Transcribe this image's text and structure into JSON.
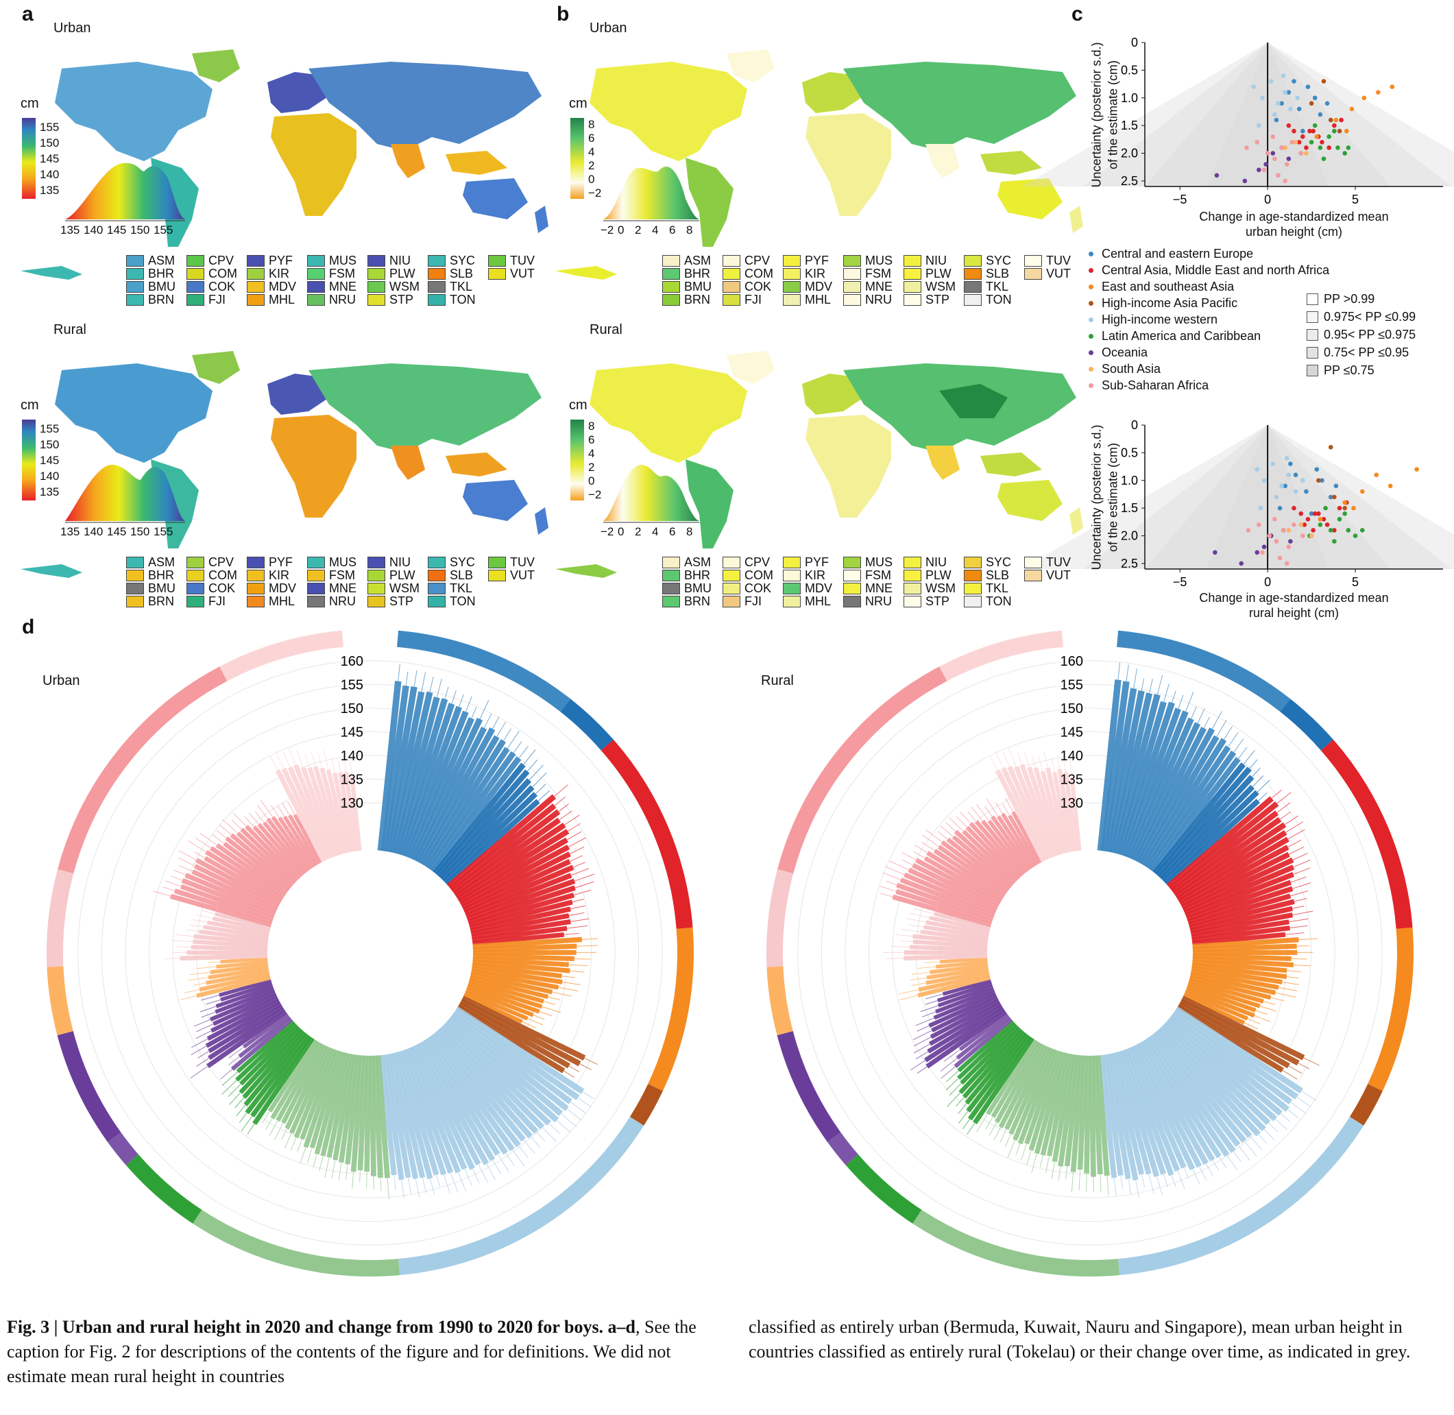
{
  "panel_labels": {
    "a": "a",
    "b": "b",
    "c": "c",
    "d": "d"
  },
  "map_titles": {
    "urban": "Urban",
    "rural": "Rural"
  },
  "map_unit": "cm",
  "panel_a": {
    "colorbar_ticks": [
      "155",
      "150",
      "145",
      "140",
      "135"
    ],
    "density_ticks": [
      "135",
      "140",
      "145",
      "150",
      "155"
    ]
  },
  "panel_b": {
    "colorbar_ticks": [
      "8",
      "6",
      "4",
      "2",
      "0",
      "−2"
    ],
    "density_ticks": [
      "−2",
      "0",
      "2",
      "4",
      "6",
      "8"
    ]
  },
  "small_country_codes": [
    "ASM",
    "BHR",
    "BMU",
    "BRN",
    "CPV",
    "COM",
    "COK",
    "FJI",
    "PYF",
    "KIR",
    "MDV",
    "MHL",
    "MUS",
    "FSM",
    "MNE",
    "NRU",
    "NIU",
    "PLW",
    "WSM",
    "STP",
    "SYC",
    "SLB",
    "TKL",
    "TON",
    "TUV",
    "VUT"
  ],
  "small_colors": {
    "a_urban": [
      "#4aa0c8",
      "#3cb8b0",
      "#4aa0c8",
      "#3cb8b0",
      "#5cc64a",
      "#d8d820",
      "#4a78c8",
      "#2eb07a",
      "#4a50b0",
      "#9ed040",
      "#f0c020",
      "#f0a010",
      "#3cb8b0",
      "#56d070",
      "#4a50b0",
      "#66c060",
      "#4a50b0",
      "#a8d836",
      "#6cc850",
      "#e0e02c",
      "#3cb8b0",
      "#f08010",
      "#777777",
      "#34b2aa",
      "#6cc840",
      "#e8e020"
    ],
    "a_rural": [
      "#3cb8b0",
      "#f0c020",
      "#777777",
      "#f0c020",
      "#9ed040",
      "#e8d020",
      "#4a78c8",
      "#2eb07a",
      "#4a50b0",
      "#f0c020",
      "#f0a010",
      "#f08a20",
      "#3cb8b0",
      "#f0c020",
      "#4a50b0",
      "#777777",
      "#4a50b0",
      "#a8d836",
      "#c8e030",
      "#e8c420",
      "#3cb8b0",
      "#f07010",
      "#4a90c8",
      "#34b2aa",
      "#6cc840",
      "#e8e020"
    ],
    "b_urban": [
      "#f8f0c8",
      "#5cc870",
      "#a8d836",
      "#8acc38",
      "#fdf8d8",
      "#f0f040",
      "#f0c880",
      "#d8e040",
      "#f4f040",
      "#f4f060",
      "#88cc48",
      "#f0f0b0",
      "#a0d440",
      "#fdf8e0",
      "#f0f0b0",
      "#fdf8e0",
      "#f4f040",
      "#f8f040",
      "#f0f0a0",
      "#fdfde8",
      "#d8e840",
      "#f08a10",
      "#777777",
      "#f0f0f0",
      "#fdfde8",
      "#f4d8a0"
    ],
    "b_rural": [
      "#f8f0c8",
      "#5cc870",
      "#777777",
      "#5cc870",
      "#fdf8d8",
      "#f4f040",
      "#f0f080",
      "#f0c880",
      "#f4f040",
      "#fdf8d8",
      "#5cc870",
      "#f0f0a0",
      "#a0d440",
      "#fdfde8",
      "#f4f040",
      "#777777",
      "#f4f040",
      "#f8f040",
      "#f0f0a0",
      "#fdfde8",
      "#f0d040",
      "#f08a10",
      "#f4f040",
      "#f0f0f0",
      "#fdfde8",
      "#f4d8a0"
    ]
  },
  "panel_c": {
    "urban_xlabel": [
      "Change in age-standardized mean",
      "urban height (cm)"
    ],
    "rural_xlabel": [
      "Change in age-standardized mean",
      "rural height (cm)"
    ],
    "ylabel": [
      "Uncertainty (posterior s.d.)",
      "of the estimate (cm)"
    ],
    "x_ticks": [
      "−5",
      "0",
      "5"
    ],
    "y_ticks": [
      "0",
      "0.5",
      "1.0",
      "1.5",
      "2.0",
      "2.5"
    ]
  },
  "region_legend": [
    {
      "label": "Central and eastern Europe",
      "color": "#3f89c2"
    },
    {
      "label": "Central Asia, Middle East and north Africa",
      "color": "#e1232a"
    },
    {
      "label": "East and southeast Asia",
      "color": "#f58a1f"
    },
    {
      "label": "High-income Asia Pacific",
      "color": "#b1531d"
    },
    {
      "label": "High-income western",
      "color": "#a6cde6"
    },
    {
      "label": "Latin America and Caribbean",
      "color": "#2ea136"
    },
    {
      "label": "Oceania",
      "color": "#6a3d9a"
    },
    {
      "label": "South Asia",
      "color": "#fdb262"
    },
    {
      "label": "Sub-Saharan Africa",
      "color": "#f59a9e"
    }
  ],
  "pp_legend": [
    "PP >0.99",
    "0.975< PP  ≤0.99",
    "0.95< PP  ≤0.975",
    "0.75< PP  ≤0.95",
    "PP  ≤0.75"
  ],
  "panel_d": {
    "urban_title": "Urban",
    "rural_title": "Rural",
    "radial_ticks": [
      "160",
      "155",
      "150",
      "145",
      "140",
      "135",
      "130"
    ]
  },
  "chart_data": [
    {
      "type": "scatter",
      "title": "",
      "xlabel": "Change in age-standardized mean urban height (cm)",
      "ylabel": "Uncertainty (posterior s.d.) of the estimate (cm)",
      "xlim": [
        -7,
        10
      ],
      "ylim": [
        2.6,
        0
      ],
      "series": [
        {
          "name": "Central and eastern Europe",
          "x": [
            0.8,
            1.2,
            1.8,
            2.3,
            2.7,
            3.0,
            1.5,
            0.5,
            2.0,
            3.4
          ],
          "y": [
            1.1,
            0.9,
            1.2,
            0.8,
            1.0,
            1.3,
            0.7,
            1.4,
            1.6,
            1.1
          ]
        },
        {
          "name": "Central Asia, Middle East and north Africa",
          "x": [
            1.2,
            2.0,
            2.6,
            3.1,
            3.8,
            2.2,
            1.5,
            4.2,
            2.9,
            3.5,
            1.8,
            2.4
          ],
          "y": [
            1.5,
            1.7,
            1.6,
            1.8,
            1.5,
            1.9,
            1.6,
            1.4,
            1.7,
            1.9,
            1.8,
            1.6
          ]
        },
        {
          "name": "East and southeast Asia",
          "x": [
            5.5,
            6.3,
            7.1,
            4.8,
            3.9,
            4.5,
            2.8
          ],
          "y": [
            1.0,
            0.9,
            0.8,
            1.2,
            1.4,
            1.6,
            1.7
          ]
        },
        {
          "name": "High-income Asia Pacific",
          "x": [
            3.2,
            2.5,
            4.1,
            3.6
          ],
          "y": [
            0.7,
            1.1,
            1.6,
            1.4
          ]
        },
        {
          "name": "High-income western",
          "x": [
            -0.8,
            -0.3,
            0.2,
            0.6,
            1.0,
            1.3,
            0.4,
            -0.5,
            0.9,
            1.7
          ],
          "y": [
            0.8,
            1.0,
            0.7,
            1.1,
            0.9,
            1.2,
            1.3,
            1.5,
            0.6,
            1.0
          ]
        },
        {
          "name": "Latin America and Caribbean",
          "x": [
            2.5,
            3.0,
            3.5,
            4.0,
            4.4,
            1.9,
            2.7,
            3.8,
            4.6,
            3.2
          ],
          "y": [
            1.8,
            1.9,
            1.7,
            1.9,
            2.0,
            2.0,
            1.5,
            1.6,
            1.9,
            2.1
          ]
        },
        {
          "name": "Oceania",
          "x": [
            -2.9,
            -1.3,
            -0.5,
            0.3,
            0.8,
            1.2,
            -0.1
          ],
          "y": [
            2.4,
            2.5,
            2.3,
            2.0,
            1.9,
            2.1,
            2.2
          ]
        },
        {
          "name": "South Asia",
          "x": [
            1.0,
            1.6,
            2.2
          ],
          "y": [
            1.9,
            1.8,
            2.0
          ]
        },
        {
          "name": "Sub-Saharan Africa",
          "x": [
            -1.2,
            -0.6,
            0.0,
            0.4,
            0.8,
            1.1,
            1.4,
            -0.2,
            0.6,
            1.9,
            0.3,
            1.0
          ],
          "y": [
            1.9,
            1.8,
            2.0,
            2.1,
            1.9,
            2.2,
            1.8,
            2.3,
            2.4,
            2.0,
            1.7,
            2.5
          ]
        }
      ]
    },
    {
      "type": "scatter",
      "title": "",
      "xlabel": "Change in age-standardized mean rural height (cm)",
      "ylabel": "Uncertainty (posterior s.d.) of the estimate (cm)",
      "xlim": [
        -7,
        10
      ],
      "ylim": [
        2.6,
        0
      ],
      "series": [
        {
          "name": "Central and eastern Europe",
          "x": [
            1.0,
            1.6,
            2.2,
            2.8,
            3.1,
            3.6,
            1.3,
            0.7,
            2.5,
            3.9
          ],
          "y": [
            1.1,
            0.9,
            1.2,
            0.8,
            1.0,
            1.3,
            0.7,
            1.5,
            1.6,
            1.1
          ]
        },
        {
          "name": "Central Asia, Middle East and north Africa",
          "x": [
            1.5,
            2.3,
            2.9,
            3.4,
            4.1,
            2.6,
            1.9,
            4.5,
            3.2,
            3.8,
            2.1,
            2.7
          ],
          "y": [
            1.5,
            1.7,
            1.6,
            1.8,
            1.5,
            1.9,
            1.6,
            1.4,
            1.7,
            1.9,
            1.8,
            1.6
          ]
        },
        {
          "name": "East and southeast Asia",
          "x": [
            6.2,
            7.0,
            8.5,
            5.4,
            4.4,
            4.9,
            3.0
          ],
          "y": [
            0.9,
            1.1,
            0.8,
            1.2,
            1.4,
            1.5,
            1.7
          ]
        },
        {
          "name": "High-income Asia Pacific",
          "x": [
            3.6,
            2.9,
            4.4,
            3.8
          ],
          "y": [
            0.4,
            1.0,
            1.5,
            1.3
          ]
        },
        {
          "name": "High-income western",
          "x": [
            -0.6,
            -0.2,
            0.3,
            0.8,
            1.2,
            1.6,
            0.5,
            -0.4,
            1.1,
            2.0
          ],
          "y": [
            0.8,
            1.0,
            0.7,
            1.1,
            0.9,
            1.2,
            1.3,
            1.5,
            0.6,
            1.0
          ]
        },
        {
          "name": "Latin America and Caribbean",
          "x": [
            3.0,
            3.6,
            4.1,
            4.6,
            5.0,
            2.4,
            3.3,
            4.4,
            5.4,
            3.8
          ],
          "y": [
            1.8,
            1.9,
            1.7,
            1.9,
            2.0,
            2.0,
            1.5,
            1.6,
            1.9,
            2.1
          ]
        },
        {
          "name": "Oceania",
          "x": [
            -3.0,
            -1.5,
            -0.6,
            0.2,
            0.9,
            1.3,
            -0.2
          ],
          "y": [
            2.3,
            2.5,
            2.3,
            2.0,
            1.9,
            2.1,
            2.2
          ]
        },
        {
          "name": "South Asia",
          "x": [
            1.2,
            1.9,
            2.5
          ],
          "y": [
            1.9,
            1.8,
            2.0
          ]
        },
        {
          "name": "Sub-Saharan Africa",
          "x": [
            -1.1,
            -0.5,
            0.1,
            0.5,
            0.9,
            1.2,
            1.5,
            -0.3,
            0.7,
            2.0,
            0.4,
            1.1
          ],
          "y": [
            1.9,
            1.8,
            2.0,
            2.1,
            1.9,
            2.2,
            1.8,
            2.3,
            2.4,
            2.0,
            1.7,
            2.5
          ]
        }
      ]
    }
  ],
  "caption": {
    "fig": "Fig. 3 | ",
    "bold": "Urban and rural height in 2020 and change from 1990 to 2020 for boys. a–d",
    "text1": ", See the caption for Fig. 2 for descriptions of the contents of the figure and for definitions. We did not estimate mean rural height in countries",
    "text2": "classified as entirely urban (Bermuda, Kuwait, Nauru and Singapore), mean urban height in countries classified as entirely rural (Tokelau) or their change over time, as indicated in grey."
  }
}
